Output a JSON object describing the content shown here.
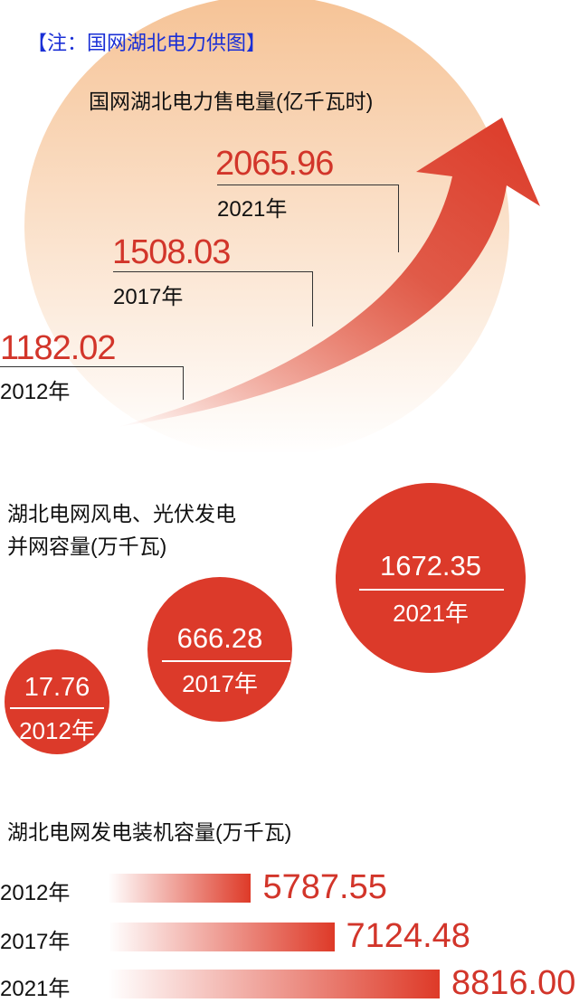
{
  "note": "【注：国网湖北电力供图】",
  "colors": {
    "accent_red": "#d2352a",
    "circle_red": "#dc3a2a",
    "peach": "#f6c79a",
    "note_blue": "#1a2fd6"
  },
  "chart_data": [
    {
      "type": "line",
      "title": "国网湖北电力售电量(亿千瓦时)",
      "categories": [
        "2012年",
        "2017年",
        "2021年"
      ],
      "values": [
        "1182.02",
        "1508.03",
        "2065.96"
      ]
    },
    {
      "type": "scatter",
      "title_line1": "湖北电网风电、光伏发电",
      "title_line2": "并网容量(万千瓦)",
      "categories": [
        "2012年",
        "2017年",
        "2021年"
      ],
      "values": [
        "17.76",
        "666.28",
        "1672.35"
      ]
    },
    {
      "type": "bar",
      "title": "湖北电网发电装机容量(万千瓦)",
      "categories": [
        "2012年",
        "2017年",
        "2021年"
      ],
      "values": [
        "5787.55",
        "7124.48",
        "8816.00"
      ]
    }
  ]
}
